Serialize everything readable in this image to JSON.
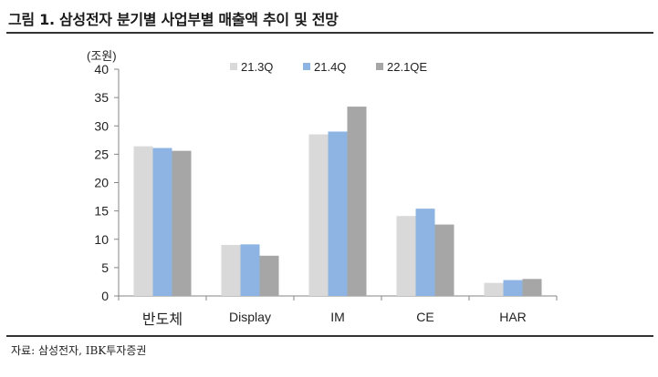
{
  "figure": {
    "title": "그림 1. 삼성전자 분기별 사업부별 매출액 추이 및 전망",
    "source": "자료: 삼성전자, IBK투자증권"
  },
  "chart_data": {
    "type": "bar",
    "title": "삼성전자 분기별 사업부별 매출액 추이 및 전망",
    "ylabel": "(조원)",
    "xlabel": "",
    "ylim": [
      0,
      40
    ],
    "yticks": [
      0,
      5,
      10,
      15,
      20,
      25,
      30,
      35,
      40
    ],
    "grid": false,
    "legend_position": "top",
    "categories": [
      "반도체",
      "Display",
      "IM",
      "CE",
      "HAR"
    ],
    "series": [
      {
        "name": "21.3Q",
        "color": "#d9d9d9",
        "values": [
          26.4,
          9.0,
          28.5,
          14.1,
          2.3
        ]
      },
      {
        "name": "21.4Q",
        "color": "#8eb4e3",
        "values": [
          26.1,
          9.1,
          29.0,
          15.4,
          2.8
        ]
      },
      {
        "name": "22.1QE",
        "color": "#a6a6a6",
        "values": [
          25.6,
          7.1,
          33.4,
          12.6,
          3.0
        ]
      }
    ]
  }
}
